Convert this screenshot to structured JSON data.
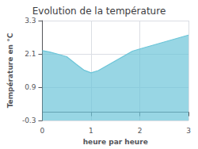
{
  "chart_data": {
    "type": "area",
    "title": "Evolution de la température",
    "xlabel": "heure par heure",
    "ylabel": "Température en °C",
    "x": [
      0,
      0.15,
      0.3,
      0.5,
      0.7,
      0.85,
      1.0,
      1.15,
      1.3,
      1.5,
      1.7,
      1.85,
      2.0,
      2.2,
      2.4,
      2.6,
      2.8,
      3.0
    ],
    "values": [
      2.22,
      2.17,
      2.1,
      2.0,
      1.72,
      1.52,
      1.42,
      1.5,
      1.65,
      1.85,
      2.05,
      2.2,
      2.28,
      2.38,
      2.48,
      2.58,
      2.68,
      2.78
    ],
    "color": "#6cc5d8",
    "xlim": [
      0,
      3
    ],
    "ylim": [
      -0.3,
      3.3
    ],
    "xticks": [
      0,
      1,
      2,
      3
    ],
    "yticks": [
      -0.3,
      0.9,
      2.1,
      3.3
    ],
    "grid": true
  }
}
